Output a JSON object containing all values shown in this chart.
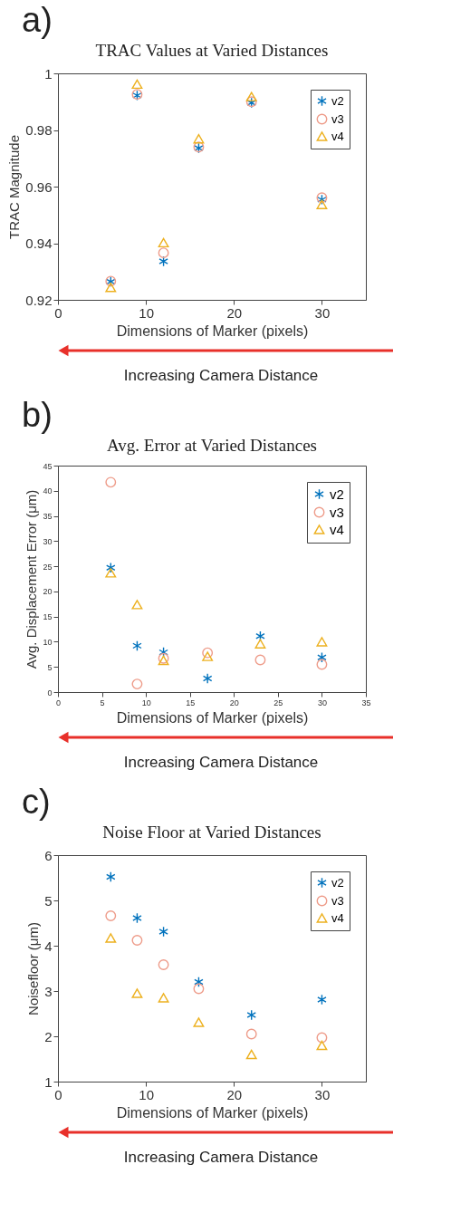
{
  "chart_data": [
    {
      "type": "scatter",
      "title": "TRAC Values at Varied Distances",
      "xlabel": "Dimensions of Marker (pixels)",
      "ylabel": "TRAC Magnitude",
      "annotations": [
        "a)",
        "Increasing Camera Distance"
      ],
      "x": [
        6,
        9,
        12,
        16,
        22,
        30
      ],
      "xlim": [
        0,
        35
      ],
      "xticks": [
        0,
        10,
        20,
        30
      ],
      "ylim": [
        0.92,
        1
      ],
      "yticks": [
        0.92,
        0.94,
        0.96,
        0.98,
        1
      ],
      "grid": false,
      "legend": "top right",
      "series": [
        {
          "name": "v2",
          "color": "#0072bd",
          "marker": "cross",
          "values": [
            0.9264,
            0.9922,
            0.9336,
            0.9736,
            0.9896,
            0.9554
          ]
        },
        {
          "name": "v3",
          "color": "#ee9c8a",
          "marker": "circle",
          "values": [
            0.9266,
            0.9926,
            0.9366,
            0.974,
            0.99,
            0.9561
          ]
        },
        {
          "name": "v4",
          "color": "#edb120",
          "marker": "triangle",
          "values": [
            0.9244,
            0.9962,
            0.9402,
            0.9769,
            0.9918,
            0.9537
          ]
        }
      ]
    },
    {
      "type": "scatter",
      "title": "Avg. Error at Varied Distances",
      "xlabel": "Dimensions of Marker (pixels)",
      "ylabel": "Avg. Displacement Error (μm)",
      "annotations": [
        "b)",
        "Increasing Camera Distance"
      ],
      "x": [
        6,
        9,
        12,
        17,
        23,
        30
      ],
      "xlim": [
        0,
        35
      ],
      "xticks": [
        0,
        5,
        10,
        15,
        20,
        25,
        30,
        35
      ],
      "ylim": [
        0,
        45
      ],
      "yticks": [
        0,
        5,
        10,
        15,
        20,
        25,
        30,
        35,
        40,
        45
      ],
      "grid": false,
      "legend": "top right",
      "series": [
        {
          "name": "v2",
          "color": "#0072bd",
          "marker": "cross",
          "values": [
            24.7,
            9.2,
            7.9,
            2.7,
            11.1,
            6.9
          ]
        },
        {
          "name": "v3",
          "color": "#ee9c8a",
          "marker": "circle",
          "values": [
            41.7,
            1.6,
            6.7,
            7.8,
            6.4,
            5.5
          ]
        },
        {
          "name": "v4",
          "color": "#edb120",
          "marker": "triangle",
          "values": [
            23.7,
            17.4,
            6.3,
            7.1,
            9.6,
            10.0
          ]
        }
      ]
    },
    {
      "type": "scatter",
      "title": "Noise Floor at Varied Distances",
      "xlabel": "Dimensions of Marker (pixels)",
      "ylabel": "Noisefloor (μm)",
      "annotations": [
        "c)",
        "Increasing Camera Distance"
      ],
      "x": [
        6,
        9,
        12,
        16,
        22,
        30
      ],
      "xlim": [
        0,
        35
      ],
      "xticks": [
        0,
        10,
        20,
        30
      ],
      "ylim": [
        1,
        6
      ],
      "yticks": [
        1,
        2,
        3,
        4,
        5,
        6
      ],
      "grid": false,
      "legend": "top right",
      "series": [
        {
          "name": "v2",
          "color": "#0072bd",
          "marker": "cross",
          "values": [
            5.52,
            4.61,
            4.31,
            3.2,
            2.47,
            2.81
          ]
        },
        {
          "name": "v3",
          "color": "#ee9c8a",
          "marker": "circle",
          "values": [
            4.66,
            4.12,
            3.58,
            3.05,
            2.05,
            1.97
          ]
        },
        {
          "name": "v4",
          "color": "#edb120",
          "marker": "triangle",
          "values": [
            4.17,
            2.95,
            2.85,
            2.31,
            1.6,
            1.8
          ]
        }
      ]
    }
  ]
}
